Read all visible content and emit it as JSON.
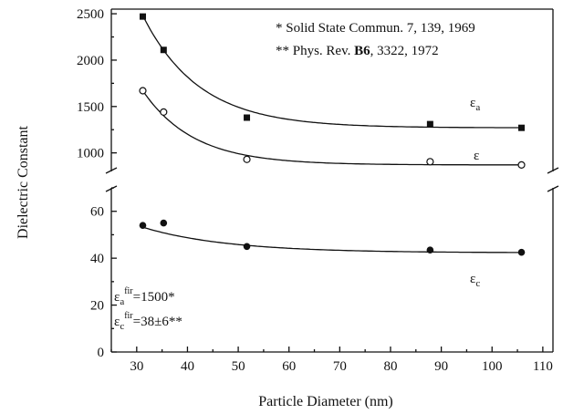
{
  "chart_data": {
    "type": "scatter",
    "xlabel": "Particle Diameter (nm)",
    "ylabel": "Dielectric Constant",
    "x_ticks": [
      "30",
      "40",
      "50",
      "60",
      "70",
      "80",
      "90",
      "100",
      "110"
    ],
    "y_ticks_lower": [
      "0",
      "20",
      "40",
      "60"
    ],
    "y_ticks_upper": [
      "1000",
      "1500",
      "2000",
      "2500"
    ],
    "xlim": [
      25,
      112
    ],
    "ylim_lower": [
      0,
      70
    ],
    "ylim_upper": [
      800,
      2550
    ],
    "axis_break": "between 70 and 800 on the y-axis",
    "grid": false,
    "series": [
      {
        "name": "εa",
        "label_main": "ε",
        "label_sub": "a",
        "marker": "filled-square",
        "points": [
          {
            "x": 31.2,
            "y": 2470
          },
          {
            "x": 35.3,
            "y": 2110
          },
          {
            "x": 51.7,
            "y": 1380
          },
          {
            "x": 87.8,
            "y": 1310
          },
          {
            "x": 105.8,
            "y": 1270
          }
        ],
        "fit": {
          "a": 1270,
          "b": 1210,
          "c": 0.09,
          "x0": 31.2
        }
      },
      {
        "name": "ε",
        "label_main": "ε",
        "label_sub": "",
        "marker": "open-circle",
        "points": [
          {
            "x": 31.2,
            "y": 1670
          },
          {
            "x": 35.3,
            "y": 1440
          },
          {
            "x": 51.7,
            "y": 930
          },
          {
            "x": 87.8,
            "y": 905
          },
          {
            "x": 105.8,
            "y": 870
          }
        ],
        "fit": {
          "a": 870,
          "b": 800,
          "c": 0.1,
          "x0": 31.2
        }
      },
      {
        "name": "εc",
        "label_main": "ε",
        "label_sub": "c",
        "marker": "filled-circle",
        "points": [
          {
            "x": 31.2,
            "y": 54
          },
          {
            "x": 35.3,
            "y": 55
          },
          {
            "x": 51.7,
            "y": 45
          },
          {
            "x": 87.8,
            "y": 43.5
          },
          {
            "x": 105.8,
            "y": 42.5
          }
        ],
        "fit": {
          "a": 42.3,
          "b": 10.9,
          "c": 0.06,
          "x0": 31.2
        }
      }
    ],
    "annotations": {
      "ref1": "* Solid State Commun. 7, 139, 1969",
      "ref2_prefix": "** Phys. Rev. ",
      "ref2_bold": "B6",
      "ref2_suffix": ", 3322, 1972",
      "note_a_main": "ε",
      "note_a_sub": "a",
      "note_a_sup": "fir",
      "note_a_value": "=1500*",
      "note_c_main": "ε",
      "note_c_sub": "c",
      "note_c_sup": "fir",
      "note_c_value": "=38±6**"
    }
  }
}
